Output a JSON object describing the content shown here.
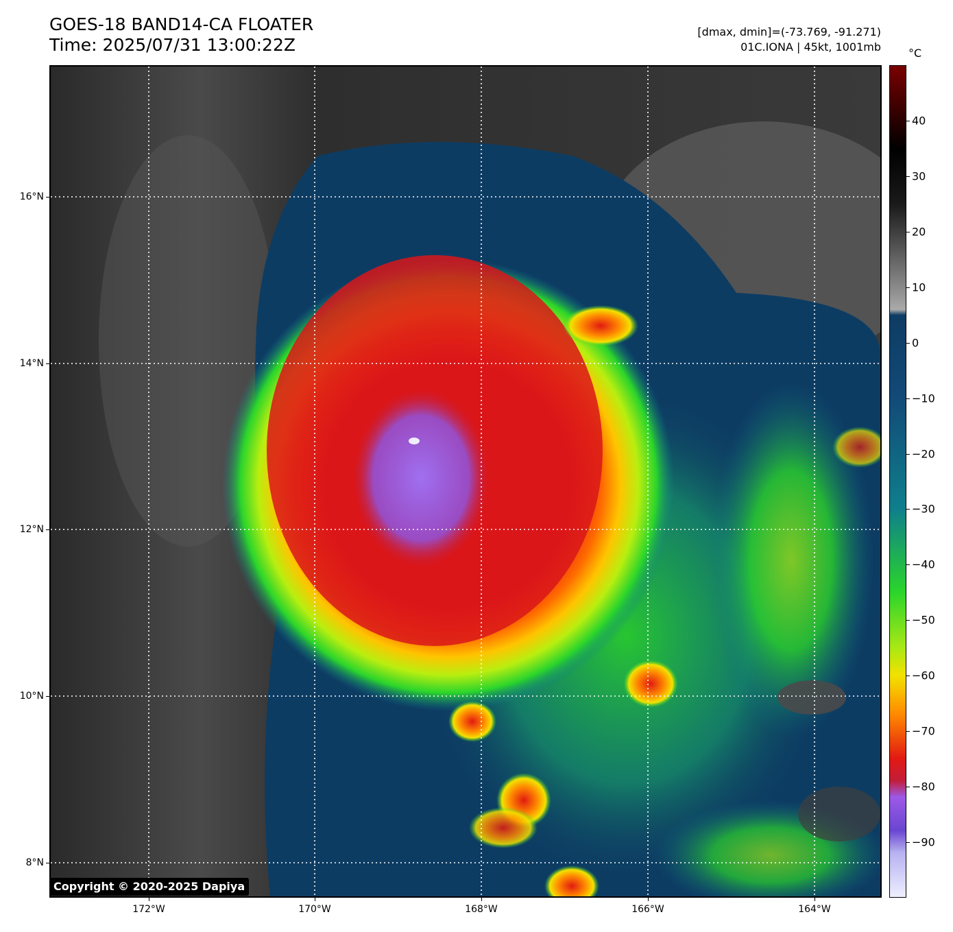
{
  "title": {
    "line1": "GOES-18 BAND14-CA FLOATER",
    "line2": "Time: 2025/07/31 13:00:22Z"
  },
  "info": {
    "range": "[dmax, dmin]=(-73.769, -91.271)",
    "storm": "01C.IONA | 45kt, 1001mb"
  },
  "map": {
    "lat_labels": [
      "16°N",
      "14°N",
      "12°N",
      "10°N",
      "8°N"
    ],
    "lon_labels": [
      "172°W",
      "170°W",
      "168°W",
      "166°W",
      "164°W"
    ],
    "gridlines": true,
    "storm_center_lon": "168°W",
    "storm_center_lat": "12.7°N"
  },
  "colorbar": {
    "unit": "°C",
    "tick_labels": [
      "40",
      "30",
      "20",
      "10",
      "0",
      "−10",
      "−20",
      "−30",
      "−40",
      "−50",
      "−60",
      "−70",
      "−80",
      "−90"
    ],
    "range": [
      -100,
      50
    ],
    "colors": {
      "warm_top": "#7a0000",
      "black": "#000000",
      "gray": "#8a8a8a",
      "dark_blue": "#0d3c63",
      "teal": "#0f7f8c",
      "green": "#2bd52b",
      "yellow": "#f2e200",
      "orange": "#ff8a00",
      "red": "#e21a12",
      "purple": "#9c5ae6",
      "pale": "#eeeeff"
    }
  },
  "copyright": "Copyright © 2020-2025 Dapiya"
}
